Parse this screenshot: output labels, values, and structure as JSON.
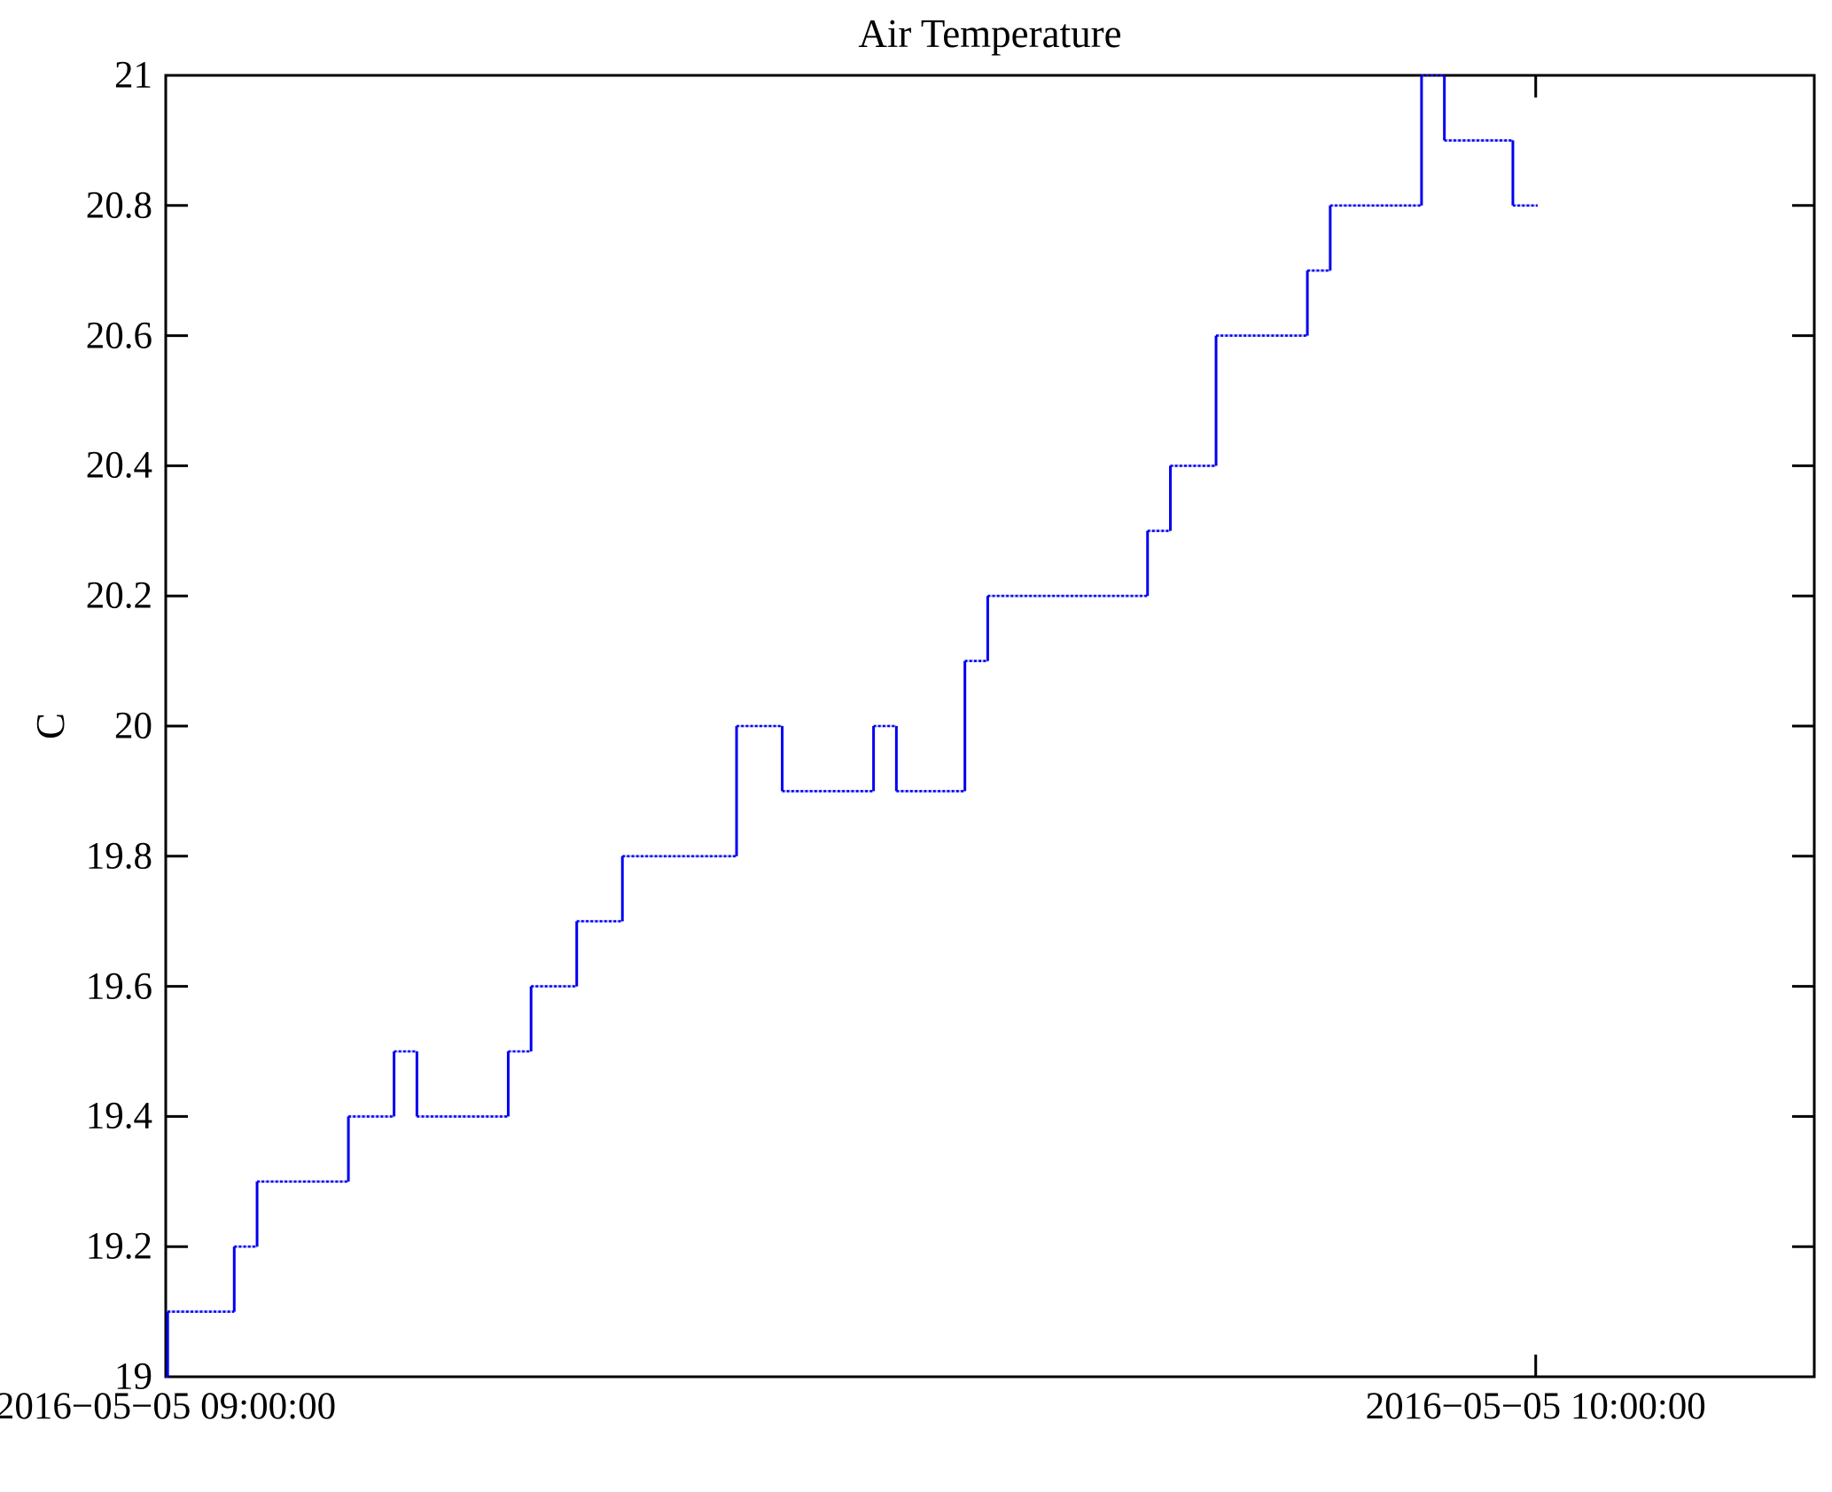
{
  "chart_data": {
    "type": "line",
    "line_style": "step",
    "title": "Air Temperature",
    "ylabel": "C",
    "xlabel": "",
    "grid": false,
    "legend_position": "none",
    "line_color": "#0000f0",
    "line_underlay_color": "rgba(70,70,255,0.38)",
    "axis_color": "#000000",
    "ylim": [
      19,
      21
    ],
    "xlim_minutes_after_start": [
      0,
      72.2
    ],
    "yticks": [
      "19",
      "19.2",
      "19.4",
      "19.6",
      "19.8",
      "20",
      "20.2",
      "20.4",
      "20.6",
      "20.8",
      "21"
    ],
    "ytick_values": [
      19,
      19.2,
      19.4,
      19.6,
      19.8,
      20,
      20.2,
      20.4,
      20.6,
      20.8,
      21
    ],
    "xticks": [
      {
        "label": "2016−05−05 09:00:00",
        "minutes": 0
      },
      {
        "label": "2016−05−05 10:00:00",
        "minutes": 60
      }
    ],
    "series": [
      {
        "name": "Air Temperature",
        "units": "C",
        "steps": [
          [
            "09:00:00",
            19.0
          ],
          [
            "09:00:05",
            19.1
          ],
          [
            "09:03:00",
            19.2
          ],
          [
            "09:04:00",
            19.3
          ],
          [
            "09:08:00",
            19.4
          ],
          [
            "09:10:00",
            19.5
          ],
          [
            "09:11:00",
            19.4
          ],
          [
            "09:15:00",
            19.5
          ],
          [
            "09:16:00",
            19.6
          ],
          [
            "09:18:00",
            19.7
          ],
          [
            "09:20:00",
            19.8
          ],
          [
            "09:25:00",
            20.0
          ],
          [
            "09:27:00",
            19.9
          ],
          [
            "09:31:00",
            20.0
          ],
          [
            "09:32:00",
            19.9
          ],
          [
            "09:35:00",
            20.1
          ],
          [
            "09:36:00",
            20.2
          ],
          [
            "09:43:00",
            20.3
          ],
          [
            "09:44:00",
            20.4
          ],
          [
            "09:46:00",
            20.6
          ],
          [
            "09:50:00",
            20.7
          ],
          [
            "09:51:00",
            20.8
          ],
          [
            "09:55:00",
            21.0
          ],
          [
            "09:56:00",
            20.9
          ],
          [
            "09:59:00",
            20.8
          ],
          [
            "10:00:05",
            20.8
          ]
        ]
      }
    ]
  }
}
